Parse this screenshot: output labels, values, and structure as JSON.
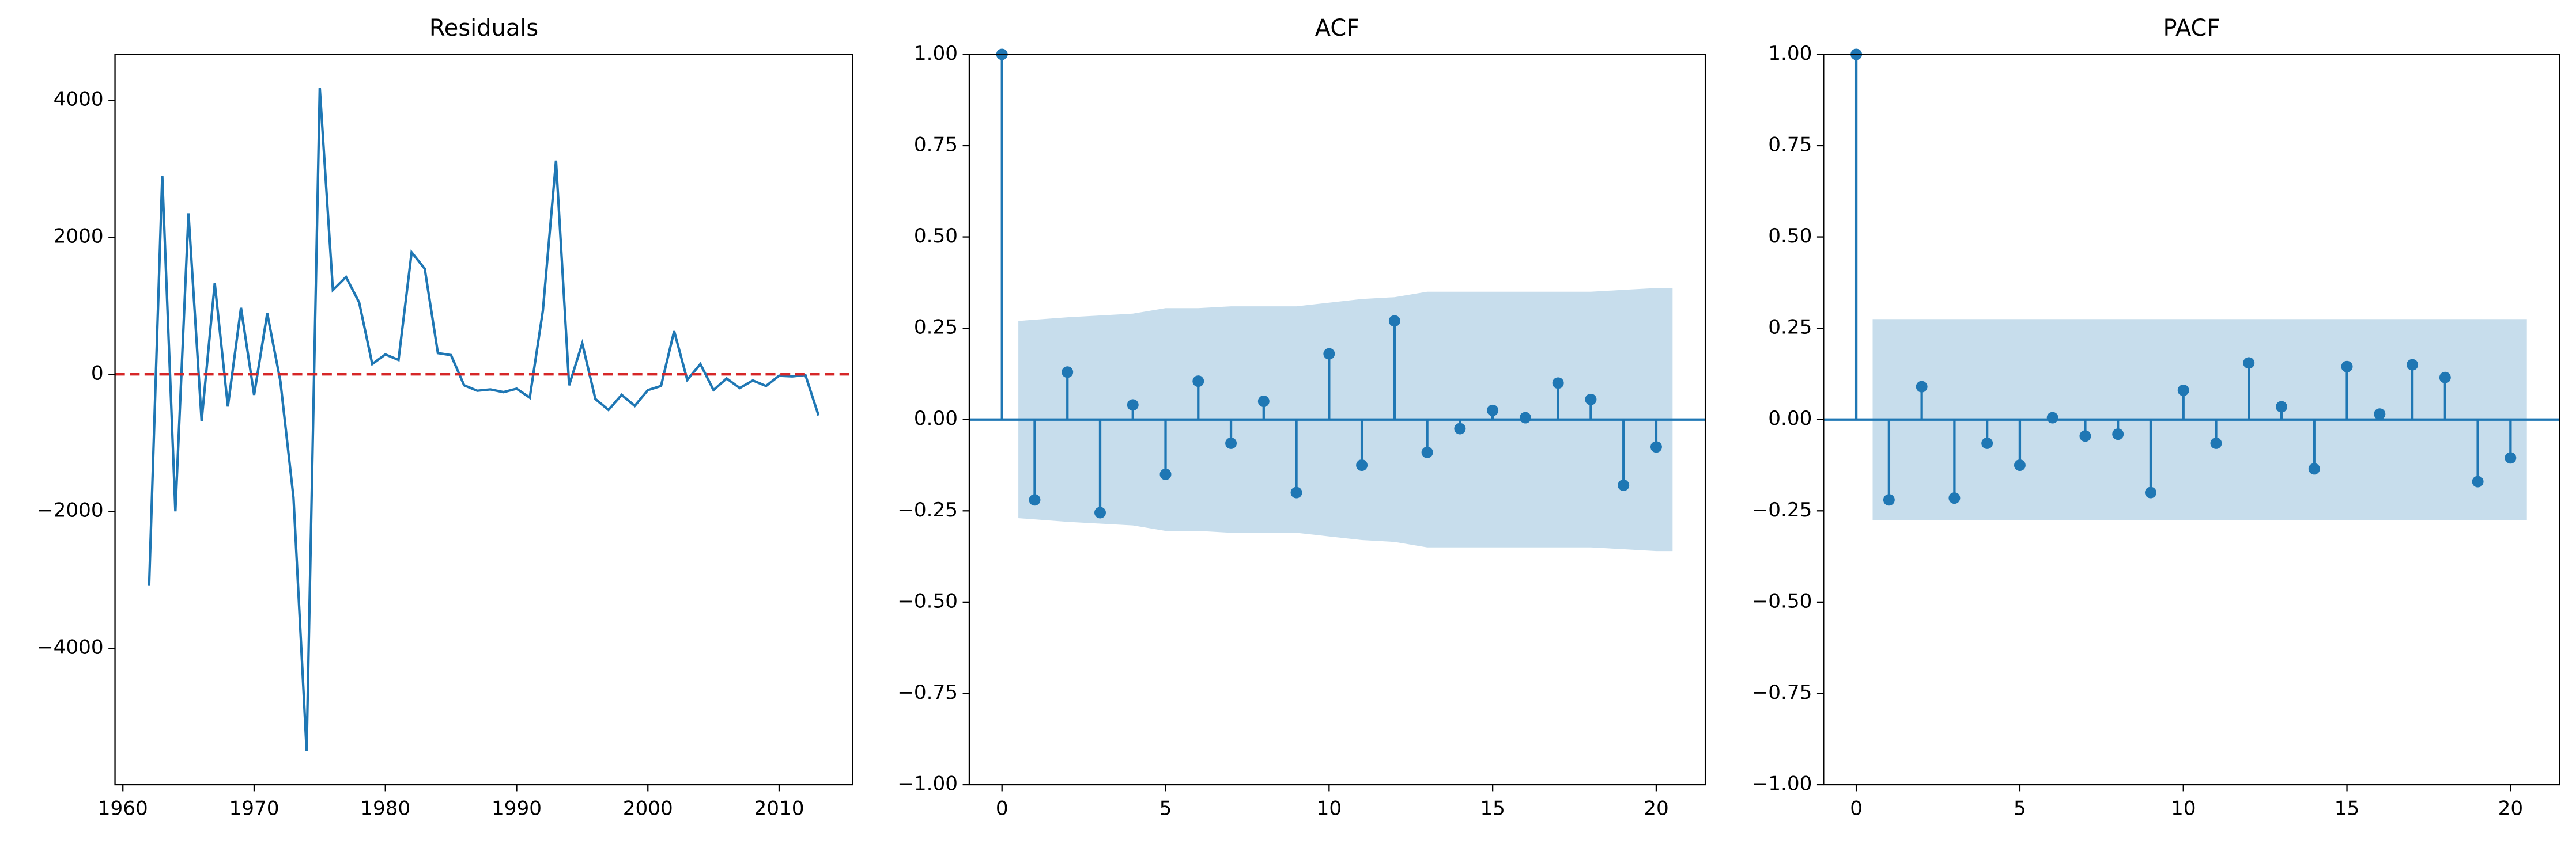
{
  "chart_data": [
    {
      "type": "line",
      "title": "Residuals",
      "color": "#1f77b4",
      "x": [
        1962,
        1963,
        1964,
        1965,
        1966,
        1967,
        1968,
        1969,
        1970,
        1971,
        1972,
        1973,
        1974,
        1975,
        1976,
        1977,
        1978,
        1979,
        1980,
        1981,
        1982,
        1983,
        1984,
        1985,
        1986,
        1987,
        1988,
        1989,
        1990,
        1991,
        1992,
        1993,
        1994,
        1995,
        1996,
        1997,
        1998,
        1999,
        2000,
        2001,
        2002,
        2003,
        2004,
        2005,
        2006,
        2007,
        2008,
        2009,
        2010,
        2011,
        2012,
        2013
      ],
      "values": [
        -3080,
        2900,
        -2000,
        2350,
        -680,
        1330,
        -470,
        970,
        -300,
        890,
        -100,
        -1800,
        -5500,
        4180,
        1230,
        1420,
        1050,
        150,
        290,
        210,
        1780,
        1540,
        310,
        280,
        -160,
        -240,
        -220,
        -260,
        -210,
        -340,
        930,
        3120,
        -160,
        450,
        -360,
        -520,
        -300,
        -460,
        -230,
        -170,
        630,
        -80,
        150,
        -230,
        -60,
        -200,
        -90,
        -170,
        -20,
        -30,
        -10,
        -600
      ],
      "hline": 0,
      "hline_color": "#d62728",
      "xlim": [
        1959.4,
        2015.6
      ],
      "xticks": [
        1960,
        1970,
        1980,
        1990,
        2000,
        2010
      ],
      "ylim": [
        -5990,
        4670
      ],
      "yticks": [
        {
          "value": -4000,
          "label": "−4000"
        },
        {
          "value": -2000,
          "label": "−2000"
        },
        0,
        2000,
        4000
      ]
    },
    {
      "type": "stem",
      "title": "ACF",
      "color": "#1f77b4",
      "x": [
        0,
        1,
        2,
        3,
        4,
        5,
        6,
        7,
        8,
        9,
        10,
        11,
        12,
        13,
        14,
        15,
        16,
        17,
        18,
        19,
        20
      ],
      "values": [
        1.0,
        -0.22,
        0.13,
        -0.255,
        0.04,
        -0.15,
        0.105,
        -0.065,
        0.05,
        -0.2,
        0.18,
        -0.125,
        0.27,
        -0.09,
        -0.025,
        0.025,
        0.005,
        0.1,
        0.055,
        -0.18,
        -0.075
      ],
      "band": [
        null,
        0.27,
        0.28,
        0.285,
        0.29,
        0.305,
        0.305,
        0.31,
        0.31,
        0.31,
        0.32,
        0.33,
        0.335,
        0.35,
        0.35,
        0.35,
        0.35,
        0.35,
        0.35,
        0.355,
        0.36
      ],
      "xlim": [
        -1.0,
        21.5
      ],
      "xticks": [
        0,
        5,
        10,
        15,
        20
      ],
      "ylim": [
        -1.0,
        1.0
      ],
      "yticks": [
        {
          "value": -1.0,
          "label": "−1.00"
        },
        {
          "value": -0.75,
          "label": "−0.75"
        },
        {
          "value": -0.5,
          "label": "−0.50"
        },
        {
          "value": -0.25,
          "label": "−0.25"
        },
        {
          "value": 0,
          "label": "0.00"
        },
        0.25,
        {
          "value": 0.5,
          "label": "0.50"
        },
        0.75,
        {
          "value": 1.0,
          "label": "1.00"
        }
      ]
    },
    {
      "type": "stem",
      "title": "PACF",
      "color": "#1f77b4",
      "x": [
        0,
        1,
        2,
        3,
        4,
        5,
        6,
        7,
        8,
        9,
        10,
        11,
        12,
        13,
        14,
        15,
        16,
        17,
        18,
        19,
        20
      ],
      "values": [
        1.0,
        -0.22,
        0.09,
        -0.215,
        -0.065,
        -0.125,
        0.005,
        -0.045,
        -0.04,
        -0.2,
        0.08,
        -0.065,
        0.155,
        0.035,
        -0.135,
        0.145,
        0.015,
        0.15,
        0.115,
        -0.17,
        -0.105
      ],
      "band": [
        null,
        0.275,
        0.275,
        0.275,
        0.275,
        0.275,
        0.275,
        0.275,
        0.275,
        0.275,
        0.275,
        0.275,
        0.275,
        0.275,
        0.275,
        0.275,
        0.275,
        0.275,
        0.275,
        0.275,
        0.275
      ],
      "xlim": [
        -1.0,
        21.5
      ],
      "xticks": [
        0,
        5,
        10,
        15,
        20
      ],
      "ylim": [
        -1.0,
        1.0
      ],
      "yticks": [
        {
          "value": -1.0,
          "label": "−1.00"
        },
        {
          "value": -0.75,
          "label": "−0.75"
        },
        {
          "value": -0.5,
          "label": "−0.50"
        },
        {
          "value": -0.25,
          "label": "−0.25"
        },
        {
          "value": 0,
          "label": "0.00"
        },
        0.25,
        {
          "value": 0.5,
          "label": "0.50"
        },
        0.75,
        {
          "value": 1.0,
          "label": "1.00"
        }
      ]
    }
  ]
}
